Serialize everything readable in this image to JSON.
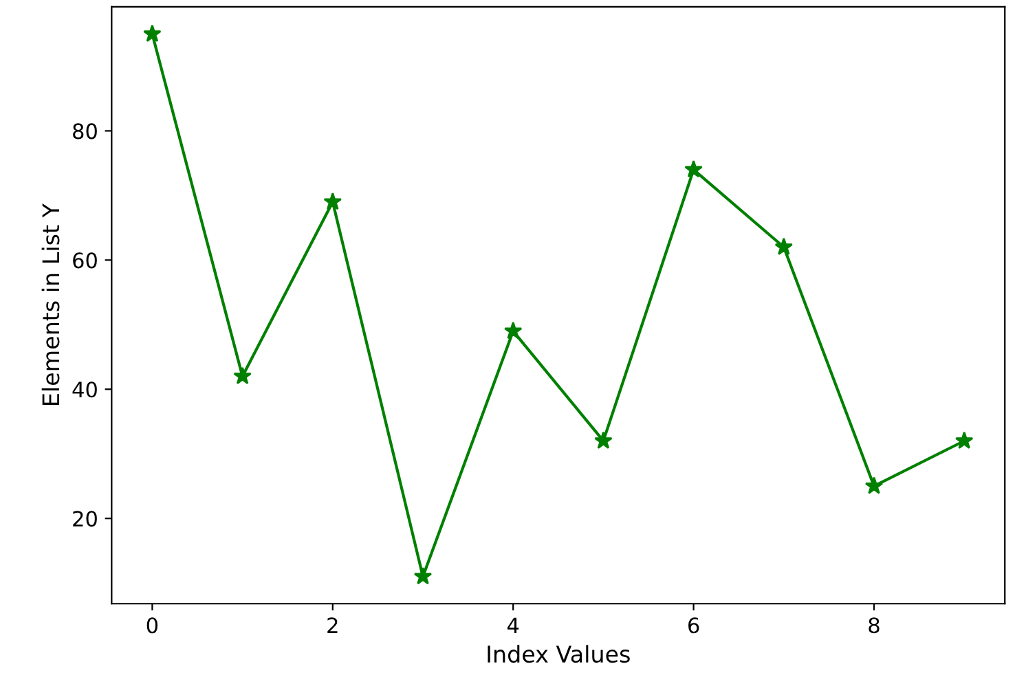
{
  "chart_data": {
    "type": "line",
    "xlabel": "Index Values",
    "ylabel": "Elements in List Y",
    "x": [
      0,
      1,
      2,
      3,
      4,
      5,
      6,
      7,
      8,
      9
    ],
    "series": [
      {
        "color": "#008000",
        "values": [
          95,
          42,
          69,
          11,
          49,
          32,
          74,
          62,
          25,
          32
        ]
      }
    ],
    "marker": "star",
    "line_style": "solid",
    "grid": false,
    "xlim": [
      -0.45,
      9.45
    ],
    "xticks": [
      0,
      2,
      4,
      6,
      8
    ],
    "ylim": [
      6.8,
      99.2
    ],
    "yticks": [
      20,
      40,
      60,
      80
    ]
  }
}
